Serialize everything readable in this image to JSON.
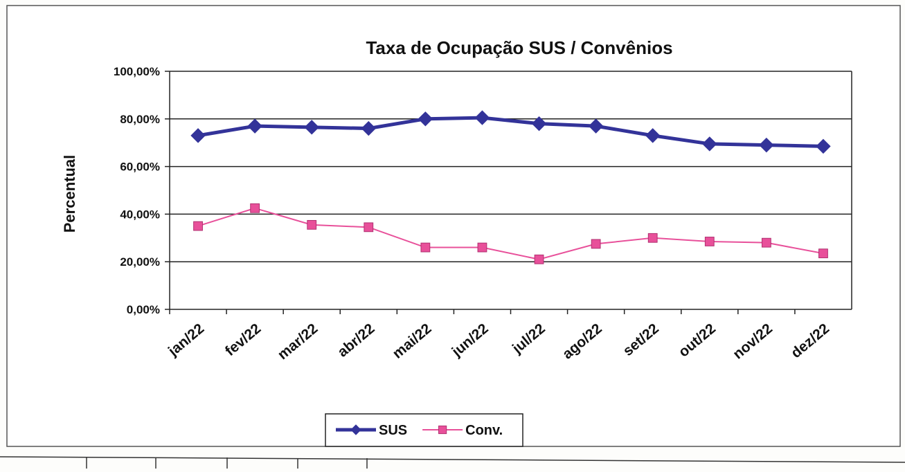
{
  "chart_data": {
    "type": "line",
    "title": "Taxa de Ocupação SUS / Convênios",
    "y_label": "Percentual",
    "categories": [
      "jan/22",
      "fev/22",
      "mar/22",
      "abr/22",
      "mai/22",
      "jun/22",
      "jul/22",
      "ago/22",
      "set/22",
      "out/22",
      "nov/22",
      "dez/22"
    ],
    "series": [
      {
        "name": "SUS",
        "color": "#333399",
        "marker": "diamond",
        "values": [
          73,
          77,
          76.5,
          76,
          80,
          80.5,
          78,
          77,
          73,
          69.5,
          69,
          68.5
        ]
      },
      {
        "name": "Conv.",
        "color": "#e8509a",
        "marker": "square",
        "values": [
          35,
          42.5,
          35.5,
          34.5,
          26,
          26,
          21,
          27.5,
          30,
          28.5,
          28,
          23.5
        ]
      }
    ],
    "ylim": [
      0,
      100
    ],
    "yticks": [
      {
        "value": 0,
        "label": "0,00%"
      },
      {
        "value": 20,
        "label": "20,00%"
      },
      {
        "value": 40,
        "label": "40,00%"
      },
      {
        "value": 60,
        "label": "60,00%"
      },
      {
        "value": 80,
        "label": "80,00%"
      },
      {
        "value": 100,
        "label": "100,00%"
      }
    ],
    "grid": true,
    "legend": "bottom"
  }
}
